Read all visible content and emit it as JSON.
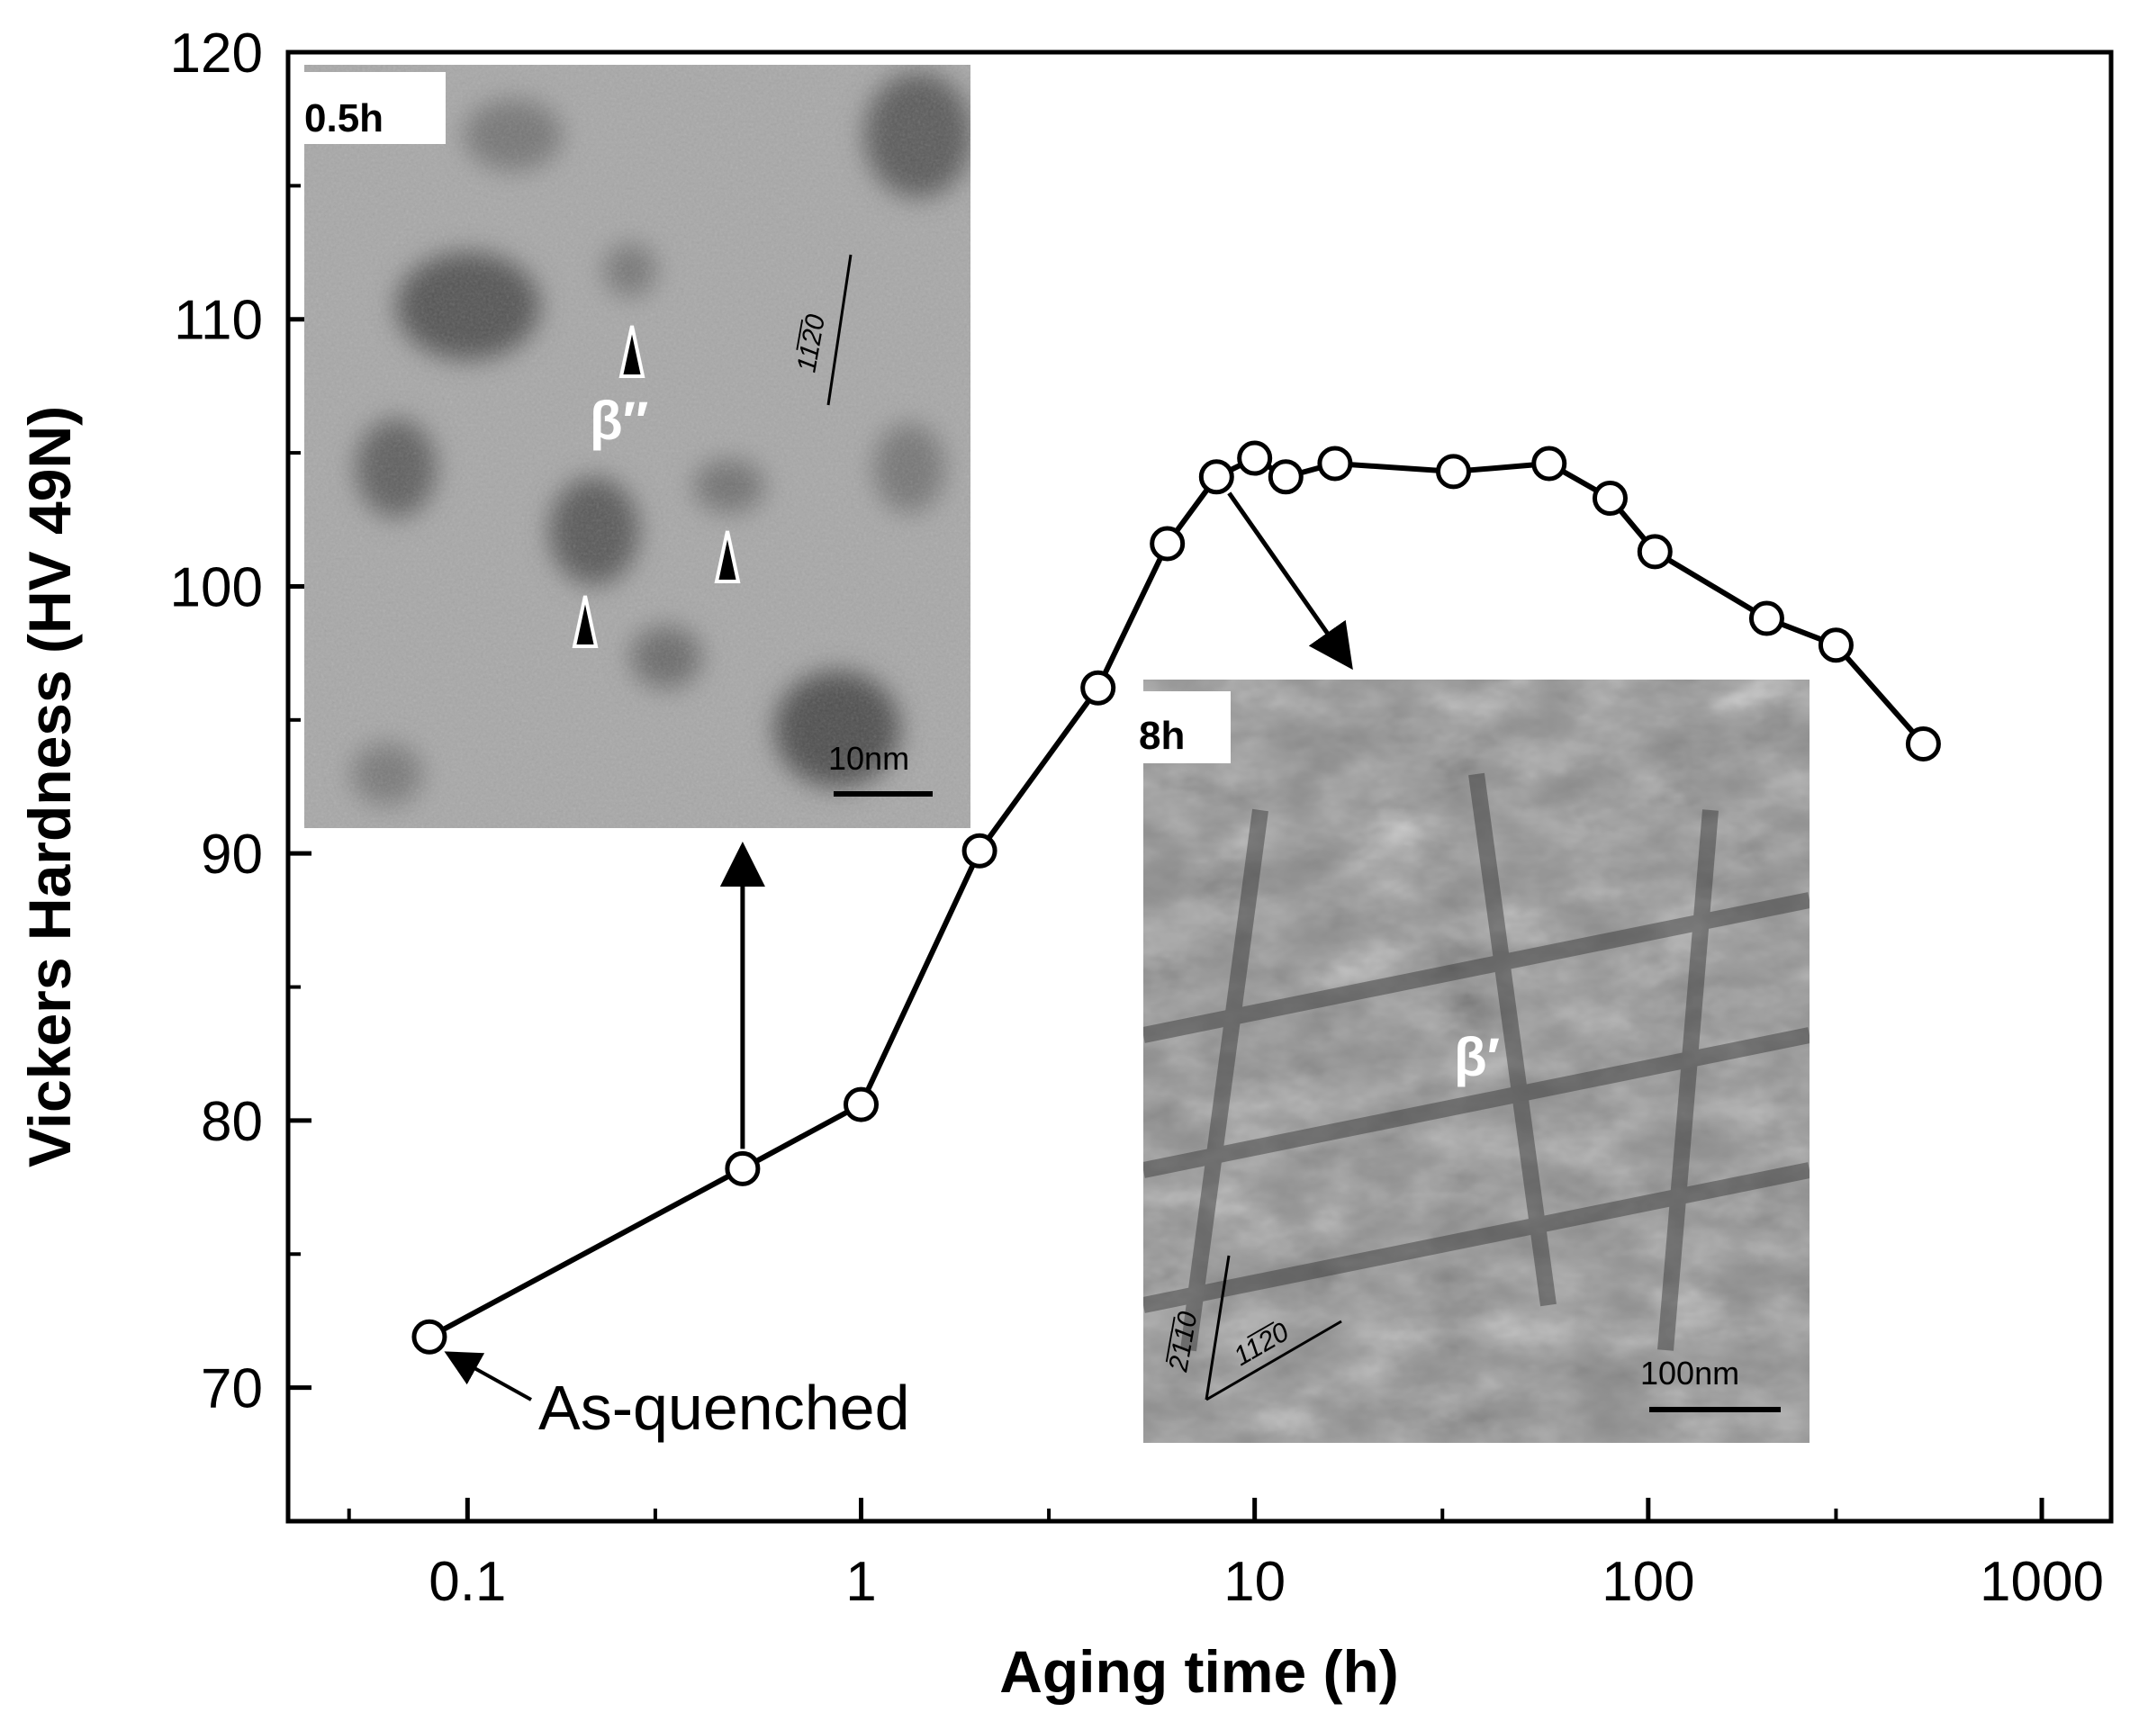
{
  "chart_data": {
    "type": "line",
    "xlabel": "Aging time (h)",
    "ylabel": "Vickers Hardness (HV 49N)",
    "xscale": "log",
    "xlim": [
      0.035,
      1500
    ],
    "ylim": [
      65,
      120
    ],
    "xticks": [
      0.1,
      1,
      10,
      100,
      1000
    ],
    "xtick_labels": [
      "0.1",
      "1",
      "10",
      "100",
      "1000"
    ],
    "yticks": [
      70,
      80,
      90,
      100,
      110,
      120
    ],
    "ytick_labels": [
      "70",
      "80",
      "90",
      "100",
      "110",
      "120"
    ],
    "grid": false,
    "marker": "open-circle",
    "series": [
      {
        "x": [
          0.08,
          0.5,
          1,
          2,
          4,
          6,
          8,
          10,
          12,
          16,
          32,
          56,
          80,
          104,
          200,
          300,
          500
        ],
        "y": [
          71.9,
          78.2,
          80.6,
          90.1,
          96.2,
          101.6,
          104.1,
          104.8,
          104.1,
          104.6,
          104.3,
          104.6,
          103.3,
          101.3,
          98.8,
          97.8,
          94.1
        ],
        "color": "#000000"
      }
    ],
    "annotations": [
      {
        "text": "As-quenched",
        "x": 0.08,
        "y": 71.9
      }
    ],
    "insets": [
      {
        "label": "0.5h",
        "phase": "β″",
        "orientation": "11̅2̅0",
        "scale_bar": "10nm",
        "points_to": {
          "x": 0.5,
          "y": 78.2
        }
      },
      {
        "label": "8h",
        "phase": "β′",
        "orientations": [
          "2̅1̅1̅0",
          "11̅2̅0"
        ],
        "scale_bar": "100nm",
        "points_to": {
          "x": 8,
          "y": 104.1
        }
      }
    ]
  },
  "colors": {
    "line": "#000000",
    "marker_fill": "#ffffff",
    "inset_gray": "#a8a8a8"
  }
}
